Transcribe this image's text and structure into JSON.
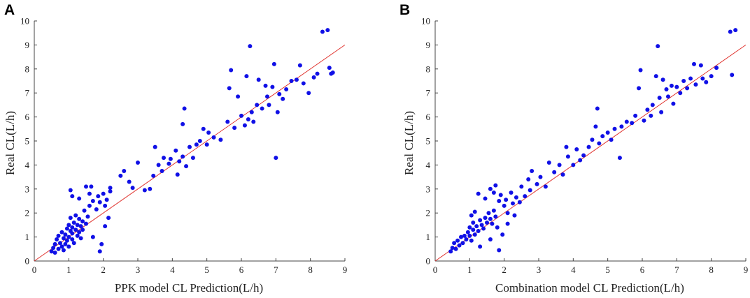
{
  "chart_data": [
    {
      "panel": "A",
      "type": "scatter",
      "xlabel": "PPK model CL Prediction(L/h)",
      "ylabel": "Real CL(L/h)",
      "xlim": [
        0,
        9
      ],
      "ylim": [
        0,
        10
      ],
      "xticks": [
        0,
        1,
        2,
        3,
        4,
        5,
        6,
        7,
        8,
        9
      ],
      "yticks": [
        0,
        1,
        2,
        3,
        4,
        5,
        6,
        7,
        8,
        9,
        10
      ],
      "reference_line": {
        "from": [
          0,
          0
        ],
        "to": [
          9,
          9
        ],
        "color": "#e0342f"
      },
      "point_color": "#1010e6",
      "points": [
        [
          0.5,
          0.4
        ],
        [
          0.55,
          0.55
        ],
        [
          0.6,
          0.7
        ],
        [
          0.6,
          0.35
        ],
        [
          0.65,
          0.9
        ],
        [
          0.7,
          0.5
        ],
        [
          0.7,
          1.05
        ],
        [
          0.75,
          0.75
        ],
        [
          0.8,
          0.6
        ],
        [
          0.8,
          1.2
        ],
        [
          0.85,
          0.95
        ],
        [
          0.85,
          0.45
        ],
        [
          0.9,
          1.1
        ],
        [
          0.9,
          0.7
        ],
        [
          0.95,
          1.35
        ],
        [
          0.95,
          0.85
        ],
        [
          1.0,
          1.0
        ],
        [
          1.0,
          1.5
        ],
        [
          1.0,
          0.6
        ],
        [
          1.05,
          1.25
        ],
        [
          1.05,
          1.8
        ],
        [
          1.1,
          0.9
        ],
        [
          1.1,
          1.4
        ],
        [
          1.1,
          1.15
        ],
        [
          1.15,
          1.6
        ],
        [
          1.15,
          0.75
        ],
        [
          1.2,
          1.3
        ],
        [
          1.2,
          1.9
        ],
        [
          1.25,
          1.05
        ],
        [
          1.25,
          1.5
        ],
        [
          1.3,
          1.2
        ],
        [
          1.3,
          1.75
        ],
        [
          1.35,
          1.45
        ],
        [
          1.35,
          0.95
        ],
        [
          1.4,
          1.65
        ],
        [
          1.4,
          1.3
        ],
        [
          1.45,
          2.1
        ],
        [
          1.5,
          1.55
        ],
        [
          1.55,
          1.85
        ],
        [
          1.6,
          2.3
        ],
        [
          1.05,
          2.95
        ],
        [
          1.1,
          2.7
        ],
        [
          1.3,
          2.6
        ],
        [
          1.5,
          3.1
        ],
        [
          1.6,
          2.8
        ],
        [
          1.65,
          3.1
        ],
        [
          1.7,
          2.5
        ],
        [
          1.8,
          2.15
        ],
        [
          1.85,
          2.7
        ],
        [
          1.9,
          2.45
        ],
        [
          2.0,
          2.8
        ],
        [
          2.05,
          2.3
        ],
        [
          2.1,
          2.55
        ],
        [
          2.2,
          2.9
        ],
        [
          2.2,
          3.05
        ],
        [
          1.95,
          0.7
        ],
        [
          1.9,
          0.4
        ],
        [
          2.05,
          1.45
        ],
        [
          2.15,
          1.8
        ],
        [
          1.7,
          1.0
        ],
        [
          2.5,
          3.55
        ],
        [
          2.6,
          3.75
        ],
        [
          2.75,
          3.3
        ],
        [
          2.85,
          3.05
        ],
        [
          3.0,
          4.1
        ],
        [
          3.2,
          2.95
        ],
        [
          3.35,
          3.0
        ],
        [
          3.45,
          3.55
        ],
        [
          3.5,
          4.75
        ],
        [
          3.6,
          4.0
        ],
        [
          3.7,
          3.75
        ],
        [
          3.75,
          4.3
        ],
        [
          3.9,
          4.05
        ],
        [
          3.95,
          4.25
        ],
        [
          4.1,
          4.6
        ],
        [
          4.15,
          3.6
        ],
        [
          4.2,
          4.15
        ],
        [
          4.3,
          4.35
        ],
        [
          4.4,
          3.95
        ],
        [
          4.35,
          6.35
        ],
        [
          4.3,
          5.7
        ],
        [
          4.5,
          4.75
        ],
        [
          4.6,
          4.3
        ],
        [
          4.7,
          4.85
        ],
        [
          4.8,
          5.0
        ],
        [
          4.9,
          5.5
        ],
        [
          5.0,
          4.85
        ],
        [
          5.05,
          5.35
        ],
        [
          5.2,
          5.15
        ],
        [
          5.4,
          5.05
        ],
        [
          5.6,
          5.8
        ],
        [
          5.65,
          7.2
        ],
        [
          5.7,
          7.95
        ],
        [
          5.8,
          5.55
        ],
        [
          5.9,
          6.85
        ],
        [
          6.0,
          6.05
        ],
        [
          6.1,
          5.65
        ],
        [
          6.15,
          7.7
        ],
        [
          6.2,
          5.9
        ],
        [
          6.25,
          8.95
        ],
        [
          6.3,
          6.2
        ],
        [
          6.35,
          5.8
        ],
        [
          6.45,
          6.5
        ],
        [
          6.5,
          7.55
        ],
        [
          6.6,
          6.35
        ],
        [
          6.7,
          7.3
        ],
        [
          6.75,
          6.85
        ],
        [
          6.8,
          6.5
        ],
        [
          6.9,
          7.25
        ],
        [
          6.95,
          8.2
        ],
        [
          7.0,
          4.3
        ],
        [
          7.05,
          6.2
        ],
        [
          7.1,
          6.95
        ],
        [
          7.2,
          6.75
        ],
        [
          7.3,
          7.15
        ],
        [
          7.45,
          7.5
        ],
        [
          7.6,
          7.55
        ],
        [
          7.7,
          8.15
        ],
        [
          7.8,
          7.4
        ],
        [
          7.95,
          7.0
        ],
        [
          8.1,
          7.65
        ],
        [
          8.2,
          7.8
        ],
        [
          8.35,
          9.55
        ],
        [
          8.5,
          9.62
        ],
        [
          8.55,
          8.05
        ],
        [
          8.6,
          7.8
        ],
        [
          8.65,
          7.85
        ]
      ]
    },
    {
      "panel": "B",
      "type": "scatter",
      "xlabel": "Combination model CL Prediction(L/h)",
      "ylabel": "Real CL(L/h)",
      "xlim": [
        0,
        9
      ],
      "ylim": [
        0,
        10
      ],
      "xticks": [
        0,
        1,
        2,
        3,
        4,
        5,
        6,
        7,
        8,
        9
      ],
      "yticks": [
        0,
        1,
        2,
        3,
        4,
        5,
        6,
        7,
        8,
        9,
        10
      ],
      "reference_line": {
        "from": [
          0,
          0
        ],
        "to": [
          9,
          9
        ],
        "color": "#e0342f"
      },
      "point_color": "#1010e6",
      "points": [
        [
          0.45,
          0.4
        ],
        [
          0.5,
          0.55
        ],
        [
          0.55,
          0.75
        ],
        [
          0.6,
          0.5
        ],
        [
          0.65,
          0.85
        ],
        [
          0.7,
          0.65
        ],
        [
          0.75,
          1.0
        ],
        [
          0.8,
          0.75
        ],
        [
          0.85,
          1.05
        ],
        [
          0.9,
          0.9
        ],
        [
          0.95,
          1.2
        ],
        [
          1.0,
          1.05
        ],
        [
          1.0,
          1.4
        ],
        [
          1.05,
          0.85
        ],
        [
          1.1,
          1.3
        ],
        [
          1.1,
          1.6
        ],
        [
          1.15,
          1.1
        ],
        [
          1.2,
          1.45
        ],
        [
          1.25,
          1.25
        ],
        [
          1.3,
          1.7
        ],
        [
          1.35,
          1.5
        ],
        [
          1.4,
          1.35
        ],
        [
          1.45,
          1.8
        ],
        [
          1.5,
          1.6
        ],
        [
          1.55,
          2.0
        ],
        [
          1.6,
          1.75
        ],
        [
          1.65,
          1.55
        ],
        [
          1.7,
          2.1
        ],
        [
          1.75,
          1.85
        ],
        [
          1.8,
          1.4
        ],
        [
          1.05,
          1.9
        ],
        [
          1.15,
          2.05
        ],
        [
          1.25,
          2.8
        ],
        [
          1.45,
          2.6
        ],
        [
          1.6,
          3.0
        ],
        [
          1.7,
          2.85
        ],
        [
          1.75,
          3.15
        ],
        [
          1.85,
          2.5
        ],
        [
          1.9,
          2.75
        ],
        [
          2.0,
          2.3
        ],
        [
          2.05,
          2.55
        ],
        [
          2.1,
          2.0
        ],
        [
          2.2,
          2.85
        ],
        [
          2.25,
          2.4
        ],
        [
          2.35,
          2.65
        ],
        [
          2.45,
          2.45
        ],
        [
          2.5,
          3.1
        ],
        [
          2.6,
          2.7
        ],
        [
          2.7,
          3.4
        ],
        [
          2.75,
          2.95
        ],
        [
          1.85,
          0.45
        ],
        [
          1.95,
          1.1
        ],
        [
          2.1,
          1.55
        ],
        [
          1.6,
          0.9
        ],
        [
          1.3,
          0.6
        ],
        [
          2.3,
          1.9
        ],
        [
          2.8,
          3.75
        ],
        [
          2.95,
          3.2
        ],
        [
          3.05,
          3.5
        ],
        [
          3.2,
          3.1
        ],
        [
          3.3,
          4.1
        ],
        [
          3.45,
          3.7
        ],
        [
          3.6,
          4.0
        ],
        [
          3.7,
          3.6
        ],
        [
          3.8,
          4.75
        ],
        [
          3.85,
          4.35
        ],
        [
          4.0,
          4.0
        ],
        [
          4.1,
          4.65
        ],
        [
          4.2,
          4.2
        ],
        [
          4.3,
          4.4
        ],
        [
          4.45,
          4.75
        ],
        [
          4.55,
          5.05
        ],
        [
          4.65,
          5.6
        ],
        [
          4.7,
          6.35
        ],
        [
          4.75,
          4.9
        ],
        [
          4.85,
          5.2
        ],
        [
          5.0,
          5.35
        ],
        [
          5.1,
          5.05
        ],
        [
          5.2,
          5.5
        ],
        [
          5.35,
          4.3
        ],
        [
          5.4,
          5.6
        ],
        [
          5.55,
          5.8
        ],
        [
          5.7,
          5.75
        ],
        [
          5.8,
          6.05
        ],
        [
          5.9,
          7.2
        ],
        [
          5.95,
          7.95
        ],
        [
          6.05,
          5.85
        ],
        [
          6.15,
          6.3
        ],
        [
          6.25,
          6.05
        ],
        [
          6.3,
          6.5
        ],
        [
          6.4,
          7.7
        ],
        [
          6.45,
          8.95
        ],
        [
          6.5,
          6.8
        ],
        [
          6.55,
          6.2
        ],
        [
          6.6,
          7.55
        ],
        [
          6.7,
          7.15
        ],
        [
          6.75,
          6.85
        ],
        [
          6.85,
          7.3
        ],
        [
          6.9,
          6.55
        ],
        [
          7.0,
          7.25
        ],
        [
          7.1,
          7.0
        ],
        [
          7.2,
          7.5
        ],
        [
          7.3,
          7.2
        ],
        [
          7.4,
          7.6
        ],
        [
          7.5,
          8.2
        ],
        [
          7.55,
          7.35
        ],
        [
          7.7,
          8.15
        ],
        [
          7.75,
          7.6
        ],
        [
          7.85,
          7.45
        ],
        [
          8.0,
          7.7
        ],
        [
          8.15,
          8.05
        ],
        [
          8.55,
          9.55
        ],
        [
          8.6,
          7.75
        ],
        [
          8.7,
          9.62
        ]
      ]
    }
  ]
}
